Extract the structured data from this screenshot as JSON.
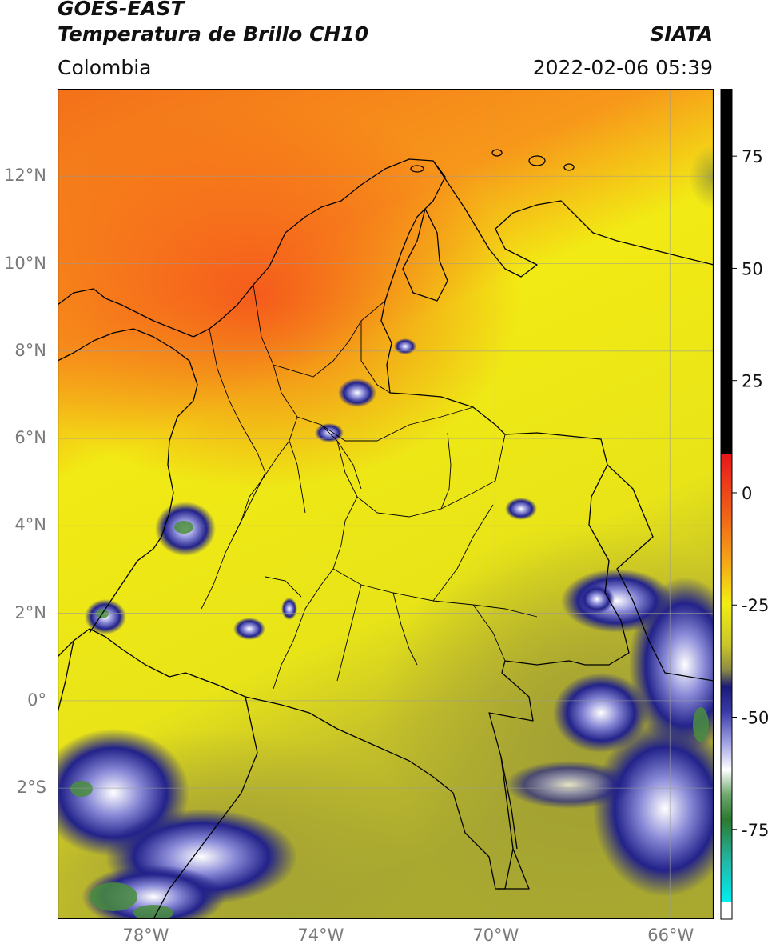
{
  "header": {
    "satellite": "GOES-EAST",
    "product": "Temperatura de Brillo CH10",
    "region": "Colombia",
    "agency": "SIATA",
    "datetime": "2022-02-06 05:39"
  },
  "map": {
    "lon_range": [
      -80,
      -65
    ],
    "lat_range": [
      -5,
      14
    ],
    "grid": true,
    "lat_ticks": [
      {
        "value": 12,
        "label": "12°N"
      },
      {
        "value": 10,
        "label": "10°N"
      },
      {
        "value": 8,
        "label": "8°N"
      },
      {
        "value": 6,
        "label": "6°N"
      },
      {
        "value": 4,
        "label": "4°N"
      },
      {
        "value": 2,
        "label": "2°N"
      },
      {
        "value": 0,
        "label": "0°"
      },
      {
        "value": -2,
        "label": "2°S"
      }
    ],
    "lon_ticks": [
      {
        "value": -78,
        "label": "78°W"
      },
      {
        "value": -74,
        "label": "74°W"
      },
      {
        "value": -70,
        "label": "70°W"
      },
      {
        "value": -66,
        "label": "66°W"
      }
    ],
    "colors": {
      "warm": "#f6621e",
      "mid": "#f7a316",
      "yellow": "#f2ee12",
      "olive": "#b9b62c",
      "cold": "#202088",
      "white": "#ffffff",
      "green": "#4a8d3e",
      "border": "#000000"
    }
  },
  "colorbar": {
    "range": [
      -95,
      90
    ],
    "ticks": [
      {
        "value": 75,
        "label": "75"
      },
      {
        "value": 50,
        "label": "50"
      },
      {
        "value": 25,
        "label": "25"
      },
      {
        "value": 0,
        "label": "0"
      },
      {
        "value": -25,
        "label": "-25"
      },
      {
        "value": -50,
        "label": "-50"
      },
      {
        "value": -75,
        "label": "-75"
      }
    ]
  }
}
